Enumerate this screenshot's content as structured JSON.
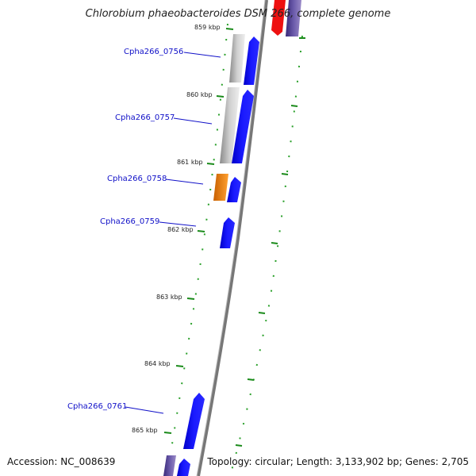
{
  "header": {
    "title": "Chlorobium phaeobacteroides DSM 266, complete genome"
  },
  "footer": {
    "accession": "Accession: NC_008639",
    "summary": "Topology: circular; Length: 3,133,902 bp; Genes: 2,705"
  },
  "ticks": [
    "859 kbp",
    "860 kbp",
    "861 kbp",
    "862 kbp",
    "863 kbp",
    "864 kbp",
    "865 kbp"
  ],
  "gene_labels": [
    "Cpha266_0756",
    "Cpha266_0757",
    "Cpha266_0758",
    "Cpha266_0759",
    "Cpha266_0761"
  ],
  "colors": {
    "backbone": "#888888",
    "tick": "#1a8a1a",
    "dot": "#2aa02a",
    "cds": "#1010ee",
    "grey_feature": "#b4b4b4",
    "orange_feature": "#f08c10",
    "red_feature": "#ee1010",
    "purple_feature": "#5a4a9a",
    "label": "#1010c8"
  }
}
